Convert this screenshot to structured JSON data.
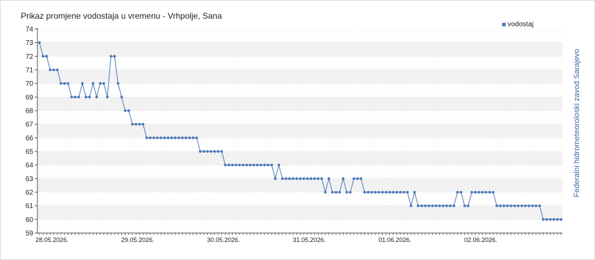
{
  "chart_data": {
    "type": "line",
    "title": "Prikaz promjene vodostaja u vremenu - Vrhpolje, Sana",
    "side_label": "Federalni hidrometeoroloski zavod Sarajevo",
    "ylim": [
      59,
      74
    ],
    "yticks": [
      59,
      60,
      61,
      62,
      63,
      64,
      65,
      66,
      67,
      68,
      69,
      70,
      71,
      72,
      73,
      74
    ],
    "x_tick_labels": [
      {
        "label": "28.05.2026.",
        "index": 3.5
      },
      {
        "label": "29.05.2026.",
        "index": 27.5
      },
      {
        "label": "30.05.2026.",
        "index": 51.5
      },
      {
        "label": "31.05.2026.",
        "index": 75.5
      },
      {
        "label": "01.06.2026.",
        "index": 99.5
      },
      {
        "label": "02.06.2026.",
        "index": 123.5
      }
    ],
    "grid": true,
    "legend_position": "top-right",
    "colors": {
      "series": "#4a78b8",
      "band": "#f2f2f2",
      "grid": "#d0d0d0"
    },
    "series": [
      {
        "name": "vodostaj",
        "values": [
          73,
          72,
          72,
          71,
          71,
          71,
          70,
          70,
          70,
          69,
          69,
          69,
          70,
          69,
          69,
          70,
          69,
          70,
          70,
          69,
          72,
          72,
          70,
          69,
          68,
          68,
          67,
          67,
          67,
          67,
          66,
          66,
          66,
          66,
          66,
          66,
          66,
          66,
          66,
          66,
          66,
          66,
          66,
          66,
          66,
          65,
          65,
          65,
          65,
          65,
          65,
          65,
          64,
          64,
          64,
          64,
          64,
          64,
          64,
          64,
          64,
          64,
          64,
          64,
          64,
          64,
          63,
          64,
          63,
          63,
          63,
          63,
          63,
          63,
          63,
          63,
          63,
          63,
          63,
          63,
          62,
          63,
          62,
          62,
          62,
          63,
          62,
          62,
          63,
          63,
          63,
          62,
          62,
          62,
          62,
          62,
          62,
          62,
          62,
          62,
          62,
          62,
          62,
          62,
          61,
          62,
          61,
          61,
          61,
          61,
          61,
          61,
          61,
          61,
          61,
          61,
          61,
          62,
          62,
          61,
          61,
          62,
          62,
          62,
          62,
          62,
          62,
          62,
          61,
          61,
          61,
          61,
          61,
          61,
          61,
          61,
          61,
          61,
          61,
          61,
          61,
          60,
          60,
          60,
          60,
          60,
          60
        ]
      }
    ]
  }
}
